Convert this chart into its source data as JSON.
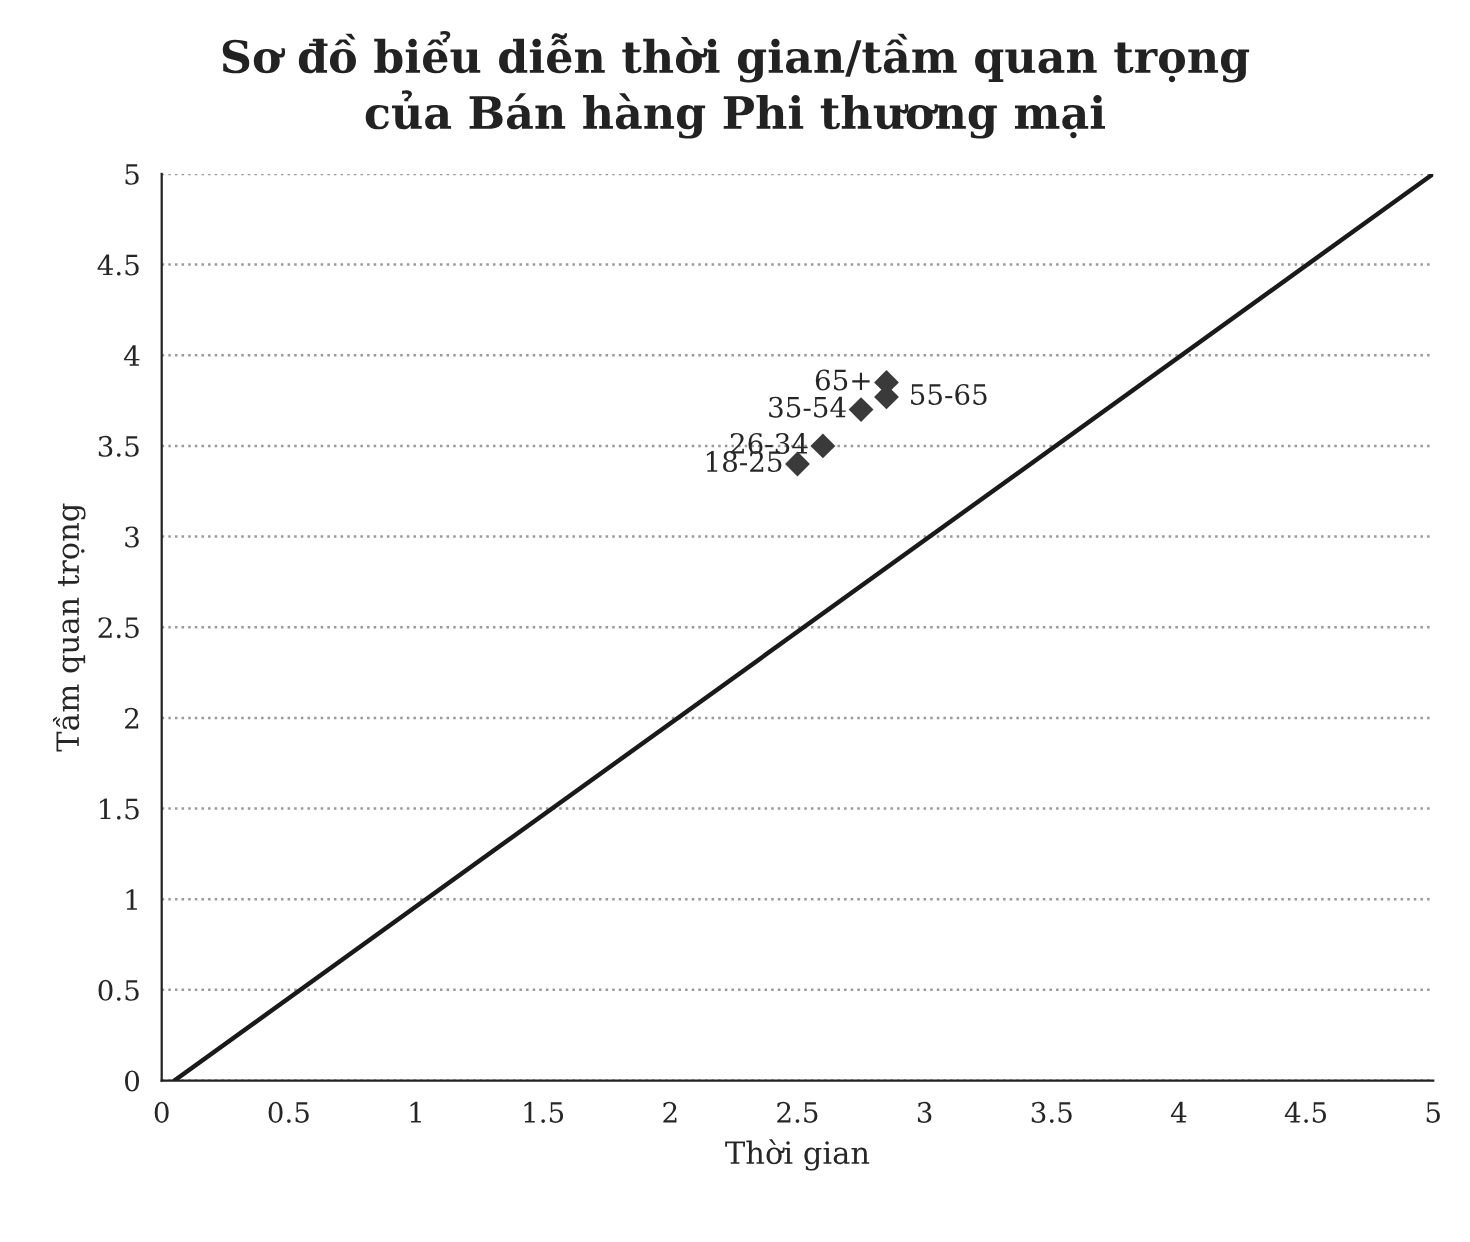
{
  "chart_data": {
    "type": "scatter",
    "title": "Sơ đồ biểu diễn thời gian/tầm quan trọng\ncủa Bán hàng Phi thương mại",
    "xlabel": "Thời gian",
    "ylabel": "Tầm quan trọng",
    "series": [
      {
        "color": "#3a3a3a",
        "marker": "diamond",
        "x": [
          2.5,
          2.6,
          2.75,
          2.85,
          2.85
        ],
        "values": [
          3.4,
          3.5,
          3.7,
          3.85,
          3.77
        ]
      },
      {
        "type": "line",
        "color": "#1a1a1a",
        "marker": "none",
        "line_style": "solid",
        "x": [
          0.05,
          5
        ],
        "values": [
          0,
          5
        ]
      }
    ],
    "annotations": [
      {
        "text": "18-25",
        "x": 2.5,
        "y": 3.4
      },
      {
        "text": "26-34",
        "x": 2.6,
        "y": 3.5
      },
      {
        "text": "35-54",
        "x": 2.75,
        "y": 3.7
      },
      {
        "text": "65+",
        "x": 2.85,
        "y": 3.85
      },
      {
        "text": "55-65",
        "x": 2.85,
        "y": 3.77
      }
    ],
    "xlim": [
      0,
      5
    ],
    "ylim": [
      0,
      5
    ],
    "xticks": [
      0,
      0.5,
      1,
      1.5,
      2,
      2.5,
      3,
      3.5,
      4,
      4.5,
      5
    ],
    "yticks": [
      0,
      0.5,
      1,
      1.5,
      2,
      2.5,
      3,
      3.5,
      4,
      4.5,
      5
    ],
    "grid": "y",
    "legend": false
  }
}
